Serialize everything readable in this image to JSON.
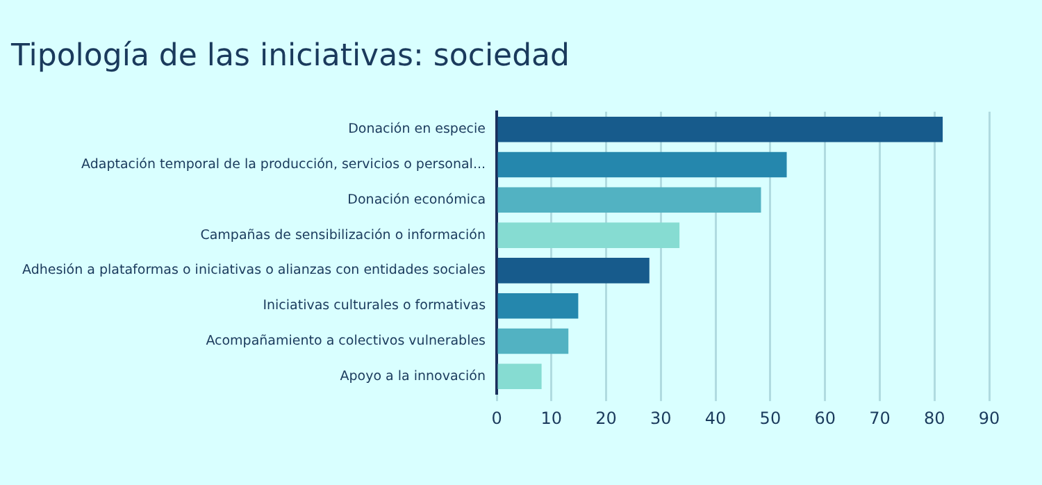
{
  "chart_data": {
    "type": "bar",
    "orientation": "horizontal",
    "title": "Tipología de las iniciativas: sociedad",
    "categories": [
      "Donación en especie",
      "Adaptación temporal de la producción, servicios o personal...",
      "Donación económica",
      "Campañas de sensibilización o información",
      "Adhesión a plataformas o iniciativas o alianzas con entidades sociales",
      "Iniciativas culturales o formativas",
      "Acompañamiento a colectivos vulnerables",
      "Apoyo a la innovación"
    ],
    "values": [
      81.5,
      53,
      48.3,
      33.4,
      27.9,
      14.9,
      13.1,
      8.2
    ],
    "colors": [
      "#175b8c",
      "#2587ad",
      "#52b2c2",
      "#86dcd2",
      "#175b8c",
      "#2587ad",
      "#52b2c2",
      "#86dcd2"
    ],
    "xlim": [
      0,
      90
    ],
    "xticks": [
      0,
      10,
      20,
      30,
      40,
      50,
      60,
      70,
      80,
      90
    ],
    "grid": "x",
    "legend": false
  }
}
